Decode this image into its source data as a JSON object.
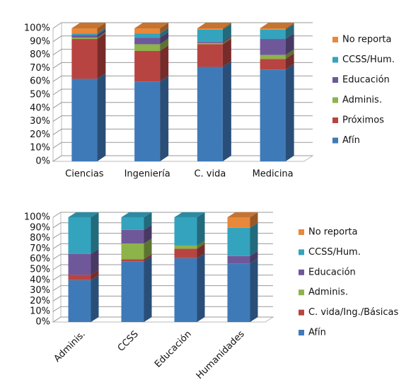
{
  "chart_data": [
    {
      "type": "bar",
      "stacked": true,
      "categories": [
        "Ciencias",
        "Ingeniería",
        "C. vida",
        "Medicina"
      ],
      "series": [
        {
          "name": "Afín",
          "color": "#3f7ab8",
          "values": [
            62,
            60,
            71,
            69
          ]
        },
        {
          "name": "Próximos",
          "color": "#b84441",
          "values": [
            30,
            23,
            17,
            8
          ]
        },
        {
          "name": "Adminis.",
          "color": "#8db34b",
          "values": [
            1,
            5,
            1,
            3
          ]
        },
        {
          "name": "Educación",
          "color": "#6f589a",
          "values": [
            2,
            5,
            1,
            12
          ]
        },
        {
          "name": "CCSS/Hum.",
          "color": "#34a3be",
          "values": [
            1,
            3,
            9,
            7
          ]
        },
        {
          "name": "No reporta",
          "color": "#e8883a",
          "values": [
            4,
            4,
            1,
            1
          ]
        }
      ],
      "ylim": [
        0,
        100
      ],
      "yticks": [
        {
          "value": 0,
          "label": "0%"
        },
        {
          "value": 10,
          "label": "10%"
        },
        {
          "value": 20,
          "label": "20%"
        },
        {
          "value": 30,
          "label": "30%"
        },
        {
          "value": 40,
          "label": "40%"
        },
        {
          "value": 50,
          "label": "50%"
        },
        {
          "value": 60,
          "label": "60%"
        },
        {
          "value": 70,
          "label": "70%"
        },
        {
          "value": 80,
          "label": "80%"
        },
        {
          "value": 90,
          "label": "90%"
        },
        {
          "value": 100,
          "label": "100%"
        }
      ],
      "grid": true,
      "legend": "right"
    },
    {
      "type": "bar",
      "stacked": true,
      "categories": [
        "Adminis.",
        "CCSS",
        "Educación",
        "Humanidades"
      ],
      "series": [
        {
          "name": "Afín",
          "color": "#3f7ab8",
          "values": [
            40,
            58,
            61,
            56
          ]
        },
        {
          "name": "C. vida/Ing./Básicas",
          "color": "#b84441",
          "values": [
            5,
            2,
            9,
            0
          ]
        },
        {
          "name": "Adminis.",
          "color": "#8db34b",
          "values": [
            0,
            15,
            3,
            0
          ]
        },
        {
          "name": "Educación",
          "color": "#6f589a",
          "values": [
            20,
            13,
            0,
            7
          ]
        },
        {
          "name": "CCSS/Hum.",
          "color": "#34a3be",
          "values": [
            35,
            12,
            27,
            27
          ]
        },
        {
          "name": "No reporta",
          "color": "#e8883a",
          "values": [
            0,
            0,
            0,
            10
          ]
        }
      ],
      "ylim": [
        0,
        100
      ],
      "yticks": [
        {
          "value": 0,
          "label": "0%"
        },
        {
          "value": 10,
          "label": "10%"
        },
        {
          "value": 20,
          "label": "20%"
        },
        {
          "value": 30,
          "label": "30%"
        },
        {
          "value": 40,
          "label": "40%"
        },
        {
          "value": 50,
          "label": "50%"
        },
        {
          "value": 60,
          "label": "60%"
        },
        {
          "value": 70,
          "label": "70%"
        },
        {
          "value": 80,
          "label": "80%"
        },
        {
          "value": 90,
          "label": "90%"
        },
        {
          "value": 100,
          "label": "100%"
        }
      ],
      "grid": true,
      "legend": "right",
      "rotate_labels": true
    }
  ]
}
